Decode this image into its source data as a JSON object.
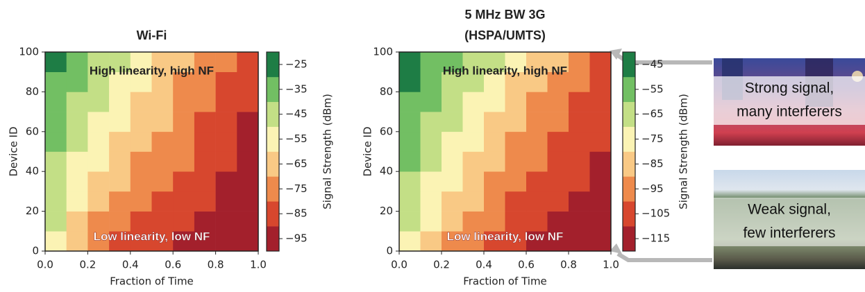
{
  "chart_data": [
    {
      "type": "heatmap",
      "title": [
        "Wi-Fi"
      ],
      "xlabel": "Fraction of Time",
      "ylabel": "Device ID",
      "colorbar_label": "Signal Strength (dBm)",
      "annotations": [
        "High linearity, high NF",
        "Low linearity, low NF"
      ],
      "xbins": [
        0,
        0.1,
        0.2,
        0.3,
        0.4,
        0.5,
        0.6,
        0.7,
        0.8,
        0.9,
        1.0
      ],
      "ybins": [
        0,
        10,
        20,
        30,
        40,
        50,
        60,
        70,
        80,
        90,
        100
      ],
      "values": [
        [
          -55,
          -65,
          -75,
          -85,
          -85,
          -85,
          -95,
          -95,
          -95,
          -95
        ],
        [
          -45,
          -65,
          -75,
          -75,
          -85,
          -85,
          -85,
          -95,
          -95,
          -95
        ],
        [
          -45,
          -55,
          -65,
          -75,
          -75,
          -85,
          -85,
          -85,
          -95,
          -95
        ],
        [
          -45,
          -55,
          -65,
          -65,
          -75,
          -75,
          -85,
          -85,
          -95,
          -95
        ],
        [
          -45,
          -55,
          -55,
          -65,
          -75,
          -75,
          -75,
          -85,
          -85,
          -95
        ],
        [
          -35,
          -45,
          -55,
          -65,
          -65,
          -75,
          -75,
          -85,
          -85,
          -95
        ],
        [
          -35,
          -45,
          -55,
          -55,
          -65,
          -65,
          -75,
          -85,
          -85,
          -95
        ],
        [
          -35,
          -45,
          -45,
          -55,
          -65,
          -65,
          -75,
          -75,
          -85,
          -85
        ],
        [
          -35,
          -35,
          -45,
          -55,
          -55,
          -65,
          -75,
          -75,
          -85,
          -85
        ],
        [
          -25,
          -35,
          -45,
          -45,
          -55,
          -65,
          -65,
          -75,
          -75,
          -85
        ]
      ],
      "colors": [
        "#a3202c",
        "#d7472e",
        "#ee8a4c",
        "#f9c985",
        "#fbf3b4",
        "#c3df86",
        "#72bf63",
        "#1e7d45"
      ],
      "clim": [
        -100,
        -20
      ],
      "cticks": [
        {
          "value": -95,
          "label": "−95"
        },
        {
          "value": -85,
          "label": "−85"
        },
        {
          "value": -75,
          "label": "−75"
        },
        {
          "value": -65,
          "label": "−65"
        },
        {
          "value": -55,
          "label": "−55"
        },
        {
          "value": -45,
          "label": "−45"
        },
        {
          "value": -35,
          "label": "−35"
        },
        {
          "value": -25,
          "label": "−25"
        }
      ],
      "xlim": [
        0,
        1
      ],
      "ylim": [
        0,
        100
      ],
      "xticks": [
        {
          "value": 0,
          "label": "0.0"
        },
        0.2,
        0.4,
        0.6,
        0.8,
        {
          "value": 1,
          "label": "1.0"
        }
      ],
      "yticks": [
        0,
        20,
        40,
        60,
        80,
        100
      ]
    },
    {
      "type": "heatmap",
      "title": [
        "5 MHz BW 3G",
        "(HSPA/UMTS)"
      ],
      "xlabel": "Fraction of Time",
      "ylabel": "Device ID",
      "colorbar_label": "Signal Strength (dBm)",
      "annotations": [
        "High linearity, high NF",
        "Low linearity, low NF"
      ],
      "xbins": [
        0,
        0.1,
        0.2,
        0.3,
        0.4,
        0.5,
        0.6,
        0.7,
        0.8,
        0.9,
        1.0
      ],
      "ybins": [
        0,
        10,
        20,
        30,
        40,
        50,
        60,
        70,
        80,
        90,
        100
      ],
      "values": [
        [
          -75,
          -85,
          -95,
          -95,
          -105,
          -105,
          -115,
          -115,
          -115,
          -115
        ],
        [
          -65,
          -75,
          -85,
          -95,
          -95,
          -105,
          -105,
          -115,
          -115,
          -115
        ],
        [
          -65,
          -75,
          -85,
          -85,
          -95,
          -105,
          -105,
          -105,
          -115,
          -115
        ],
        [
          -65,
          -75,
          -75,
          -85,
          -95,
          -95,
          -105,
          -105,
          -105,
          -115
        ],
        [
          -55,
          -65,
          -75,
          -85,
          -85,
          -95,
          -95,
          -105,
          -105,
          -115
        ],
        [
          -55,
          -65,
          -75,
          -75,
          -85,
          -95,
          -95,
          -105,
          -105,
          -105
        ],
        [
          -55,
          -65,
          -65,
          -75,
          -85,
          -85,
          -95,
          -95,
          -105,
          -105
        ],
        [
          -55,
          -55,
          -65,
          -75,
          -75,
          -85,
          -95,
          -95,
          -105,
          -105
        ],
        [
          -45,
          -55,
          -65,
          -65,
          -75,
          -85,
          -85,
          -95,
          -95,
          -105
        ],
        [
          -45,
          -55,
          -55,
          -65,
          -65,
          -75,
          -85,
          -85,
          -95,
          -105
        ]
      ],
      "colors": [
        "#a3202c",
        "#d7472e",
        "#ee8a4c",
        "#f9c985",
        "#fbf3b4",
        "#c3df86",
        "#72bf63",
        "#1e7d45"
      ],
      "clim": [
        -120,
        -40
      ],
      "cticks": [
        {
          "value": -115,
          "label": "−115"
        },
        {
          "value": -105,
          "label": "−105"
        },
        {
          "value": -95,
          "label": "−95"
        },
        {
          "value": -85,
          "label": "−85"
        },
        {
          "value": -75,
          "label": "−75"
        },
        {
          "value": -65,
          "label": "−65"
        },
        {
          "value": -55,
          "label": "−55"
        },
        {
          "value": -45,
          "label": "−45"
        }
      ],
      "xlim": [
        0,
        1
      ],
      "ylim": [
        0,
        100
      ],
      "xticks": [
        {
          "value": 0,
          "label": "0.0"
        },
        0.2,
        0.4,
        0.6,
        0.8,
        {
          "value": 1,
          "label": "1.0"
        }
      ],
      "yticks": [
        0,
        20,
        40,
        60,
        80,
        100
      ]
    }
  ],
  "images": [
    {
      "caption": [
        "Strong signal,",
        "many interferers"
      ]
    },
    {
      "caption": [
        "Weak signal,",
        "few interferers"
      ]
    }
  ]
}
